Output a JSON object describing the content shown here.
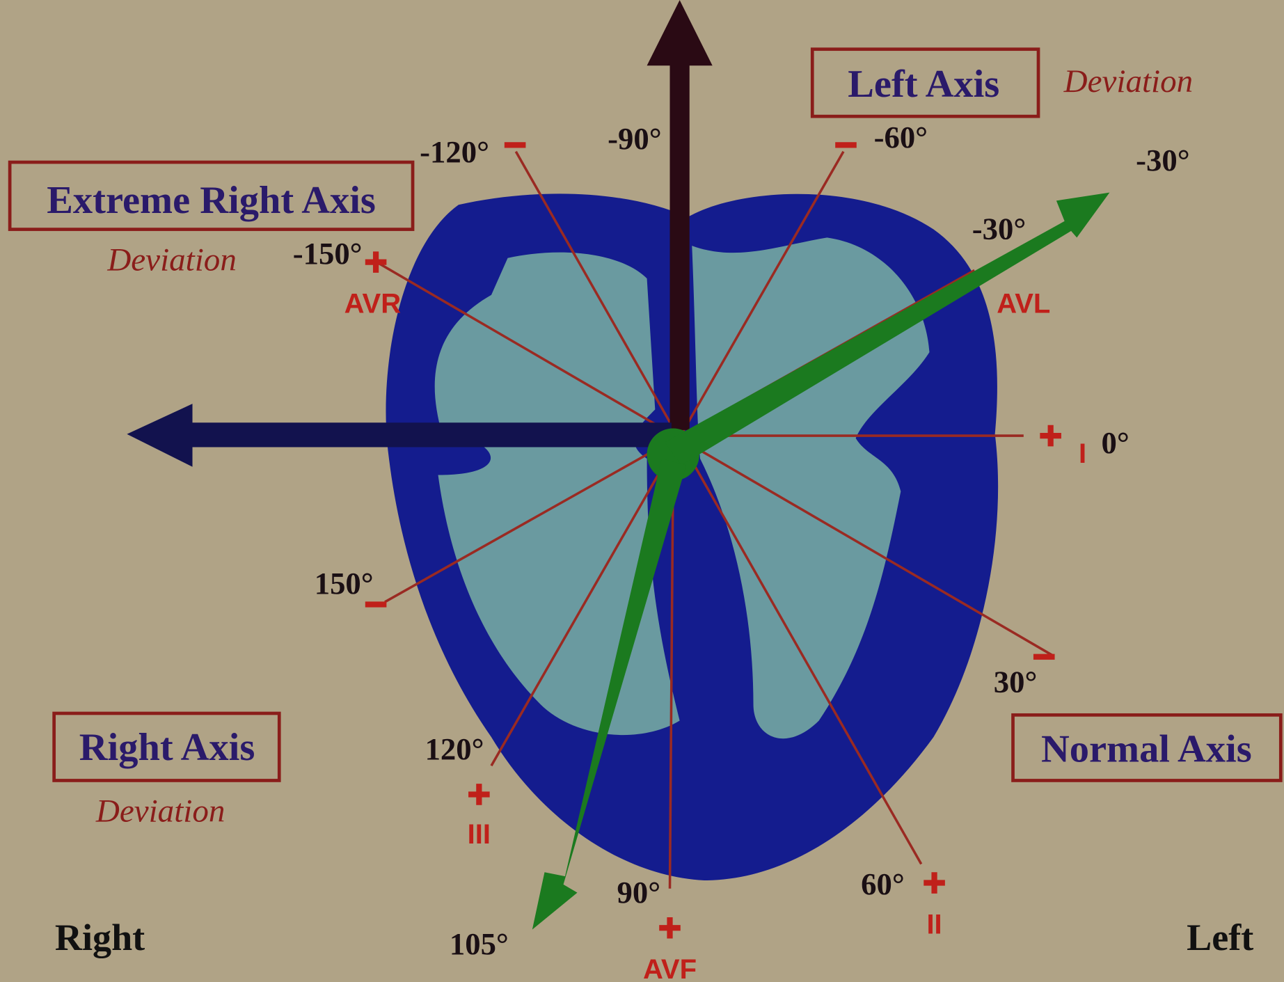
{
  "boxes": [
    {
      "label": "Extreme Right Axis",
      "note": "Deviation"
    },
    {
      "label": "Left Axis",
      "note": "Deviation"
    },
    {
      "label": "Right Axis",
      "note": "Deviation"
    },
    {
      "label": "Normal Axis"
    }
  ],
  "angles": [
    "-120°",
    "-90°",
    "-60°",
    "-30°",
    "-30°",
    "-150°",
    "0°",
    "30°",
    "60°",
    "90°",
    "105°",
    "120°",
    "150°"
  ],
  "leads": [
    "AVR",
    "AVL",
    "I",
    "II",
    "III",
    "AVF"
  ],
  "sides": [
    "Right",
    "Left"
  ]
}
